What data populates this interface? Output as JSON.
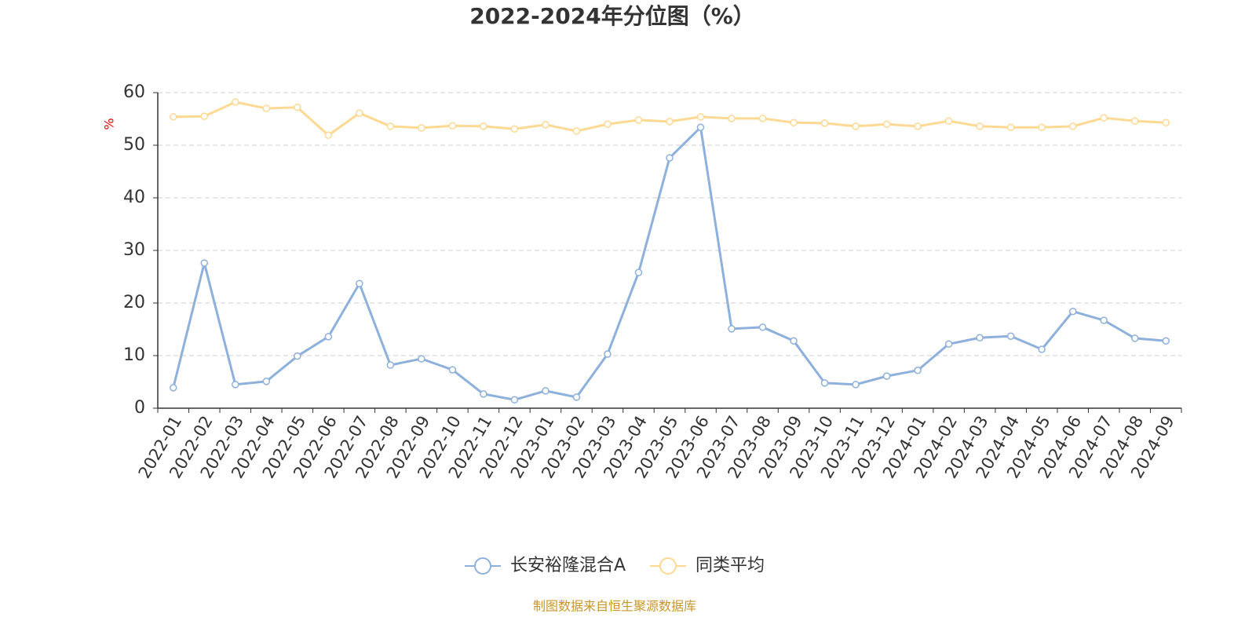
{
  "chart_data": {
    "type": "line",
    "title": "2022-2024年分位图（%）",
    "y_label": "%",
    "source": "制图数据来自恒生聚源数据库",
    "categories": [
      "2022-01",
      "2022-02",
      "2022-03",
      "2022-04",
      "2022-05",
      "2022-06",
      "2022-07",
      "2022-08",
      "2022-09",
      "2022-10",
      "2022-11",
      "2022-12",
      "2023-01",
      "2023-02",
      "2023-03",
      "2023-04",
      "2023-05",
      "2023-06",
      "2023-07",
      "2023-08",
      "2023-09",
      "2023-10",
      "2023-11",
      "2023-12",
      "2024-01",
      "2024-02",
      "2024-03",
      "2024-04",
      "2024-05",
      "2024-06",
      "2024-07",
      "2024-08",
      "2024-09"
    ],
    "series": [
      {
        "name": "长安裕隆混合A",
        "color": "#8eb0dc",
        "values": [
          3.9,
          27.6,
          4.5,
          5.1,
          9.9,
          13.6,
          23.7,
          8.2,
          9.4,
          7.3,
          2.7,
          1.6,
          3.3,
          2.1,
          10.3,
          25.8,
          47.6,
          53.4,
          15.1,
          15.4,
          12.8,
          4.8,
          4.5,
          6.1,
          7.2,
          12.2,
          13.4,
          13.7,
          11.2,
          18.4,
          16.7,
          13.3,
          12.8
        ]
      },
      {
        "name": "同类平均",
        "color": "#fdd993",
        "values": [
          55.4,
          55.5,
          58.2,
          57.0,
          57.2,
          51.9,
          56.1,
          53.6,
          53.3,
          53.7,
          53.6,
          53.1,
          53.9,
          52.7,
          54.0,
          54.8,
          54.5,
          55.4,
          55.1,
          55.1,
          54.3,
          54.2,
          53.6,
          54.0,
          53.6,
          54.6,
          53.6,
          53.4,
          53.4,
          53.6,
          55.2,
          54.6,
          54.3
        ]
      }
    ],
    "ylim": [
      0,
      60
    ],
    "yticks": [
      0,
      10,
      20,
      30,
      40,
      50,
      60
    ],
    "grid": true
  }
}
